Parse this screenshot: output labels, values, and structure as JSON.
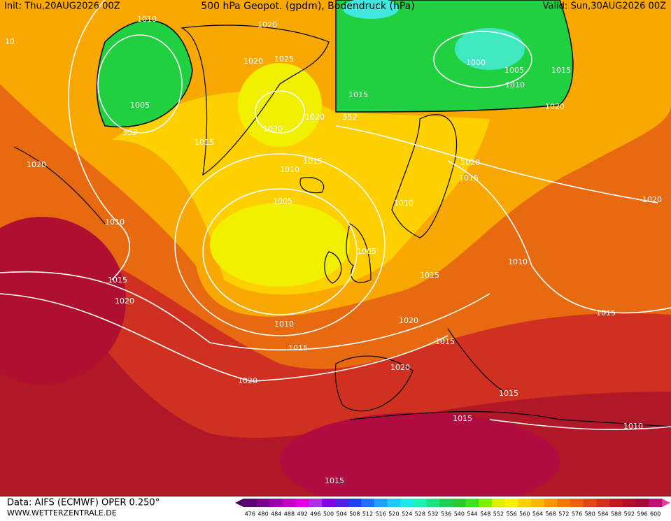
{
  "header": {
    "init": "Init: Thu,20AUG2026 00Z",
    "title": "500 hPa Geopot. (gpdm), Bodendruck (hPa)",
    "valid": "Valid: Sun,30AUG2026 00Z"
  },
  "isobar_labels": [
    1010,
    1020,
    10,
    1020,
    1025,
    1000,
    1005,
    1015,
    1010,
    1015,
    1005,
    1020,
    1030,
    1020,
    1015,
    1020,
    1015,
    1010,
    1020,
    1015,
    1005,
    1010,
    1020,
    1010,
    1005,
    1010,
    1015,
    1015,
    1020,
    1015,
    1010,
    1020,
    1015,
    1015,
    1020,
    1020,
    1015,
    1015,
    1010,
    1015
  ],
  "geopotential_labels": [
    552,
    552
  ],
  "footer": {
    "data": "Data: AIFS (ECMWF) OPER 0.250°",
    "site": "WWW.WETTERZENTRALE.DE"
  },
  "scale": {
    "labels": [
      476,
      480,
      484,
      488,
      492,
      496,
      500,
      504,
      508,
      512,
      516,
      520,
      524,
      528,
      532,
      536,
      540,
      544,
      548,
      552,
      556,
      560,
      564,
      568,
      572,
      576,
      580,
      584,
      588,
      592,
      596,
      600
    ],
    "colors": [
      "#5a0070",
      "#7a0090",
      "#9a00a8",
      "#c000c0",
      "#e000e0",
      "#b030e0",
      "#8000e0",
      "#5020e0",
      "#2040f0",
      "#2070ff",
      "#20a0ff",
      "#20c8ff",
      "#20e8e8",
      "#20f0b0",
      "#20e080",
      "#20d050",
      "#30c830",
      "#40e020",
      "#80f000",
      "#e0f000",
      "#fff000",
      "#ffd000",
      "#ffb800",
      "#f89800",
      "#f07800",
      "#e86010",
      "#e04818",
      "#d03020",
      "#c01c20",
      "#b01028",
      "#a00c38",
      "#c0107a"
    ]
  }
}
